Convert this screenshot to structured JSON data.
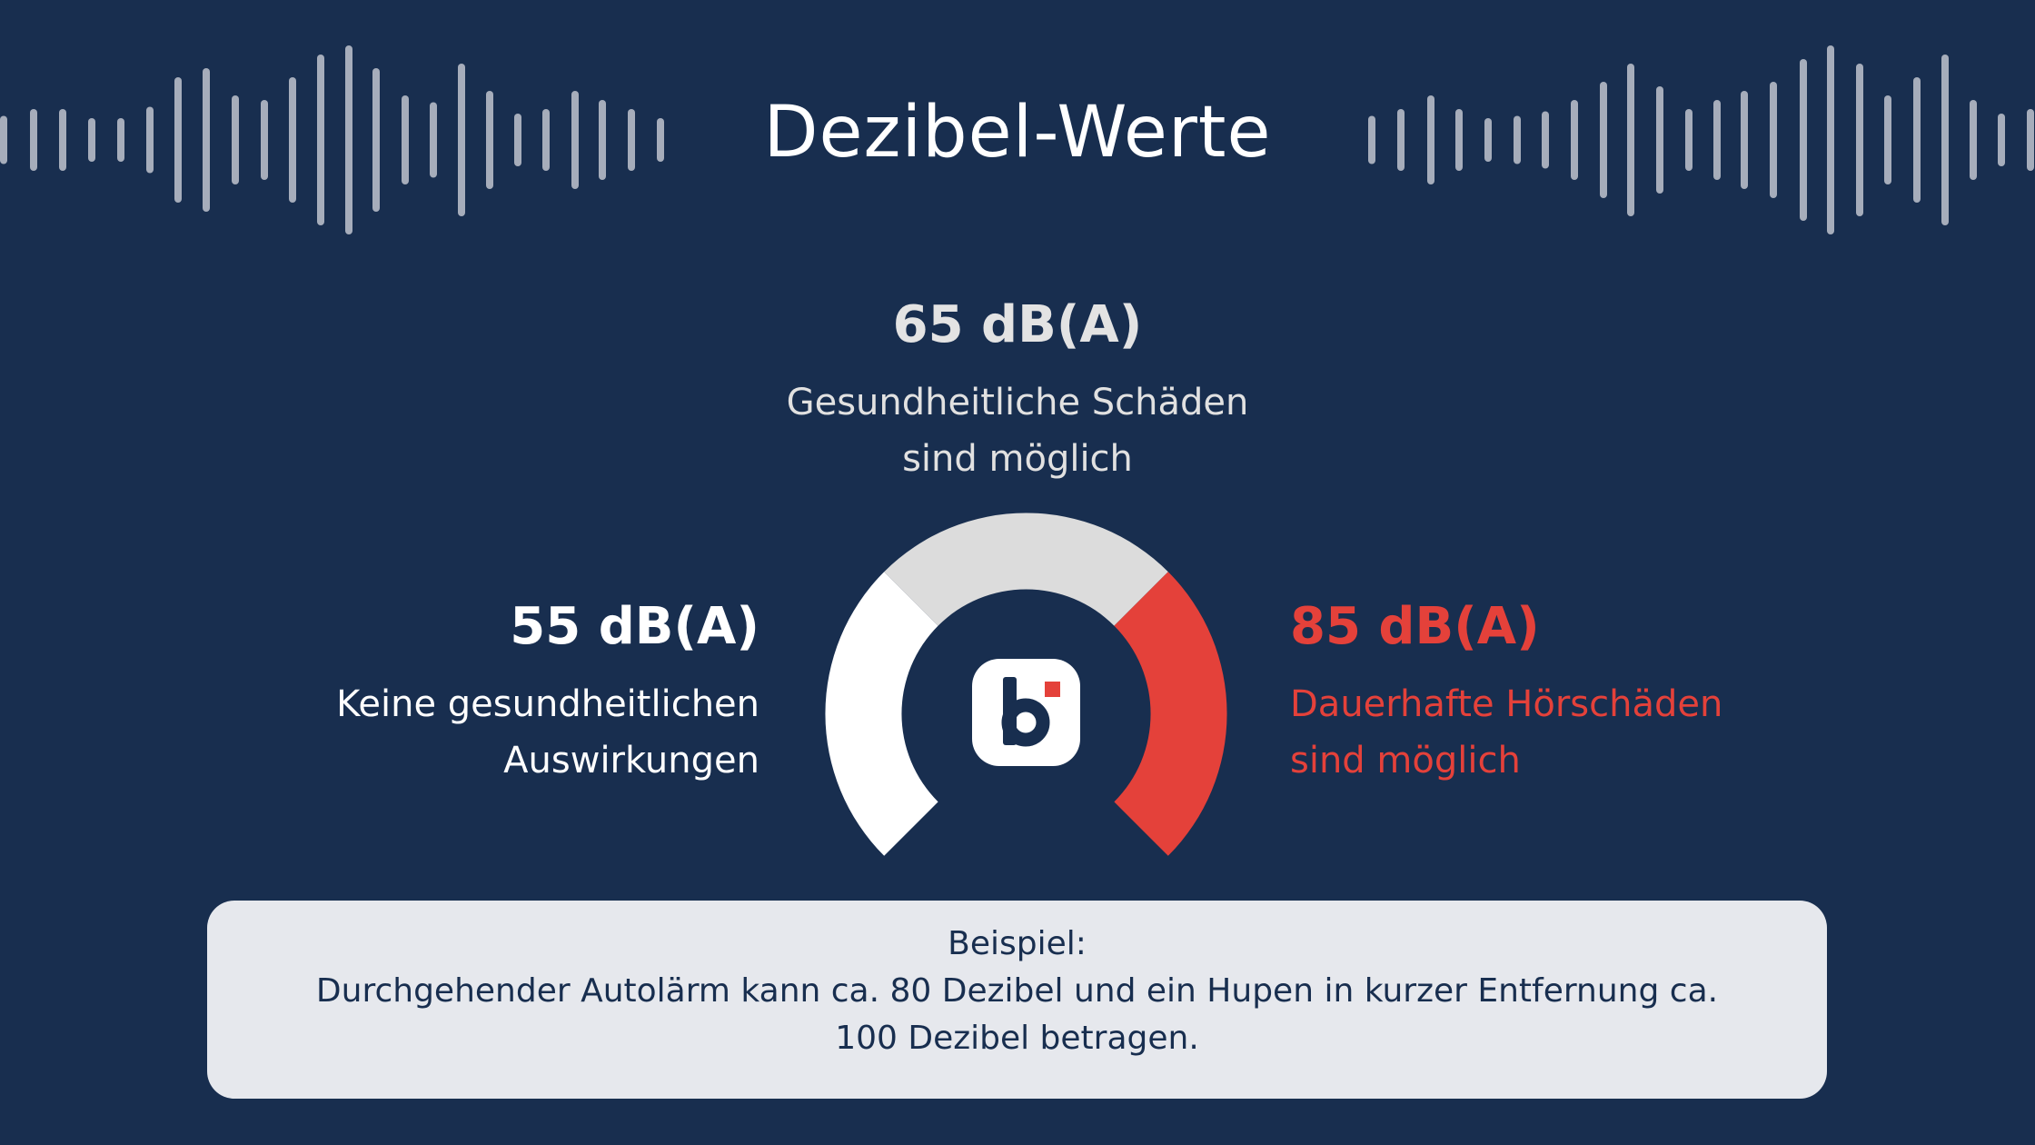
{
  "title": "Dezibel-Werte",
  "levels": {
    "low": {
      "value": "55 dB(A)",
      "lines": [
        "Keine gesundheitlichen",
        "Auswirkungen"
      ],
      "color": "#ffffff"
    },
    "mid": {
      "value": "65 dB(A)",
      "lines": [
        "Gesundheitliche Schäden",
        "sind möglich"
      ],
      "color": "#dcdcdc"
    },
    "high": {
      "value": "85 dB(A)",
      "lines": [
        "Dauerhafte Hörschäden",
        "sind möglich"
      ],
      "color": "#e4413a"
    }
  },
  "example": {
    "heading": "Beispiel:",
    "lines": [
      "Durchgehender Autolärm kann ca. 80 Dezibel und ein Hupen in kurzer Entfernung ca.",
      "100 Dezibel betragen."
    ]
  },
  "logo": {
    "letter": "b",
    "icon": "brand-b-logo-icon"
  },
  "colors": {
    "background": "#182e4f",
    "wave": "#a6adbb",
    "accent": "#e4413a",
    "box": "#e6e8ed"
  }
}
